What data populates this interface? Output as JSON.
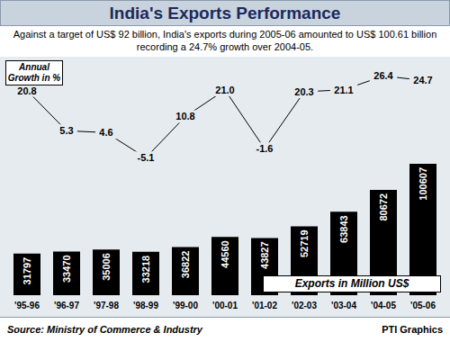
{
  "chart_data": {
    "type": "bar",
    "title": "India's Exports Performance",
    "subtitle": "Against a target of US$ 92 billion, India's exports during 2005-06 amounted to US$ 100.61 billion recording a 24.7% growth over 2004-05.",
    "source": "Source: Ministry of Commerce & Industry",
    "credit": "PTI Graphics",
    "categories": [
      "'95-96",
      "'96-97",
      "'97-98",
      "'98-99",
      "'99-00",
      "'00-01",
      "'01-02",
      "'02-03",
      "'03-04",
      "'04-05",
      "'05-06"
    ],
    "series": [
      {
        "name": "Exports in Million US$",
        "type": "bar",
        "color": "#000000",
        "values": [
          31797,
          33470,
          35006,
          33218,
          36822,
          44560,
          43827,
          52719,
          63843,
          80672,
          100607
        ]
      },
      {
        "name": "Annual Growth in %",
        "type": "line",
        "color": "#000000",
        "axis": "y2",
        "values": [
          20.8,
          5.3,
          4.6,
          -5.1,
          10.8,
          21.0,
          -1.6,
          20.3,
          21.1,
          26.4,
          24.7
        ],
        "value_labels": [
          "20.8",
          "5.3",
          "4.6",
          "-5.1",
          "10.8",
          "21.0",
          "-1.6",
          "20.3",
          "21.1",
          "26.4",
          "24.7"
        ]
      }
    ],
    "ylim": [
      0,
      175000
    ],
    "yticks": [
      0,
      175000
    ],
    "y2lim": [
      -58,
      30
    ],
    "y2ticks": [
      -58,
      30
    ],
    "data_labels": true,
    "tick_labels": "x",
    "grid": false
  }
}
